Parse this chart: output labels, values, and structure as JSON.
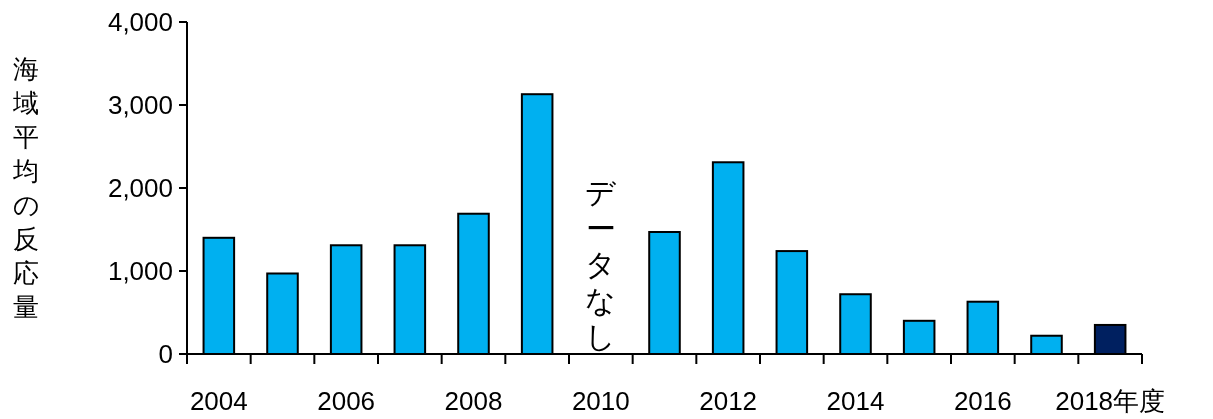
{
  "chart_data": {
    "type": "bar",
    "ylabel": "海域平均の反応量",
    "categories": [
      "2004",
      null,
      "2006",
      null,
      "2008",
      null,
      "2010",
      null,
      "2012",
      null,
      "2014",
      null,
      "2016",
      null,
      "2018年度"
    ],
    "values": [
      1400,
      970,
      1310,
      1310,
      1690,
      3130,
      null,
      1470,
      2310,
      1240,
      720,
      400,
      630,
      220,
      350
    ],
    "colors": [
      "#00b0f0",
      "#00b0f0",
      "#00b0f0",
      "#00b0f0",
      "#00b0f0",
      "#00b0f0",
      null,
      "#00b0f0",
      "#00b0f0",
      "#00b0f0",
      "#00b0f0",
      "#00b0f0",
      "#00b0f0",
      "#00b0f0",
      "#002060"
    ],
    "ylim": [
      0,
      4000
    ],
    "yticks": [
      {
        "value": 0,
        "label": "0"
      },
      {
        "value": 1000,
        "label": "1,000"
      },
      {
        "value": 2000,
        "label": "2,000"
      },
      {
        "value": 3000,
        "label": "3,000"
      },
      {
        "value": 4000,
        "label": "4,000"
      }
    ],
    "annotations": [
      "データなし"
    ]
  }
}
